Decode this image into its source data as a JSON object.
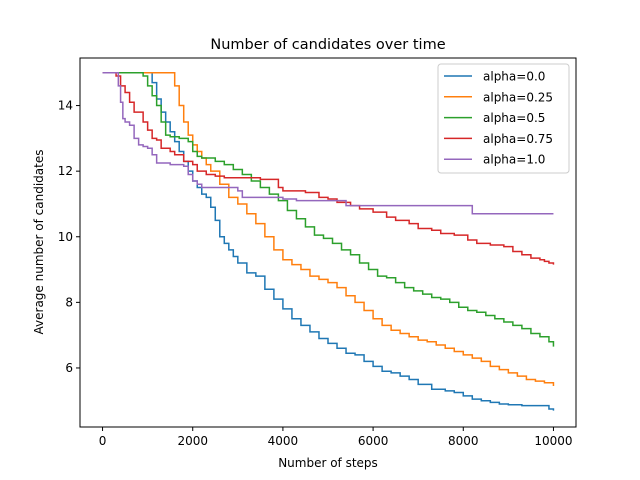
{
  "chart_data": {
    "type": "line",
    "title": "Number of candidates over time",
    "xlabel": "Number of steps",
    "ylabel": "Average number of candidates",
    "xlim": [
      -500,
      10500
    ],
    "ylim": [
      4.2,
      15.45
    ],
    "x_ticks": [
      0,
      2000,
      4000,
      6000,
      8000,
      10000
    ],
    "x_tick_labels": [
      "0",
      "2000",
      "4000",
      "6000",
      "8000",
      "10000"
    ],
    "y_ticks": [
      6,
      8,
      10,
      12,
      14
    ],
    "y_tick_labels": [
      "6",
      "8",
      "10",
      "12",
      "14"
    ],
    "grid": false,
    "legend_position": "top-right",
    "series": [
      {
        "name": "alpha=0.0",
        "color": "#1f77b4",
        "x": [
          0,
          1000,
          1100,
          1200,
          1300,
          1400,
          1500,
          1600,
          1700,
          1800,
          1900,
          2000,
          2100,
          2200,
          2300,
          2400,
          2500,
          2600,
          2700,
          2800,
          2900,
          3000,
          3200,
          3400,
          3600,
          3800,
          4000,
          4200,
          4400,
          4600,
          4800,
          5000,
          5200,
          5400,
          5600,
          5800,
          6000,
          6200,
          6400,
          6600,
          6800,
          7000,
          7300,
          7600,
          7800,
          8000,
          8200,
          8400,
          8600,
          8800,
          9000,
          9300,
          9600,
          9900,
          10000
        ],
        "y": [
          15.0,
          15.0,
          14.7,
          14.2,
          13.8,
          13.5,
          13.2,
          12.9,
          12.6,
          12.3,
          12.0,
          11.7,
          11.5,
          11.3,
          11.2,
          10.9,
          10.5,
          10.0,
          9.8,
          9.6,
          9.4,
          9.2,
          8.9,
          8.8,
          8.4,
          8.1,
          7.8,
          7.5,
          7.3,
          7.1,
          6.9,
          6.75,
          6.6,
          6.45,
          6.4,
          6.2,
          6.05,
          5.9,
          5.85,
          5.75,
          5.65,
          5.5,
          5.35,
          5.3,
          5.25,
          5.15,
          5.05,
          5.0,
          4.95,
          4.9,
          4.88,
          4.85,
          4.85,
          4.75,
          4.7
        ]
      },
      {
        "name": "alpha=0.25",
        "color": "#ff7f0e",
        "x": [
          0,
          1500,
          1600,
          1700,
          1800,
          1900,
          2000,
          2100,
          2200,
          2300,
          2400,
          2600,
          2800,
          3000,
          3200,
          3400,
          3600,
          3800,
          4000,
          4200,
          4400,
          4600,
          4800,
          5000,
          5200,
          5400,
          5600,
          5800,
          6000,
          6200,
          6400,
          6600,
          6800,
          7000,
          7200,
          7400,
          7600,
          7800,
          8000,
          8200,
          8400,
          8600,
          8800,
          9000,
          9200,
          9400,
          9600,
          9800,
          10000
        ],
        "y": [
          15.0,
          15.0,
          14.6,
          14.0,
          13.5,
          13.1,
          12.8,
          12.6,
          12.4,
          12.2,
          12.0,
          11.6,
          11.2,
          11.0,
          10.7,
          10.4,
          10.0,
          9.6,
          9.3,
          9.15,
          9.0,
          8.8,
          8.7,
          8.6,
          8.45,
          8.2,
          8.0,
          7.75,
          7.5,
          7.3,
          7.15,
          7.05,
          6.95,
          6.85,
          6.8,
          6.7,
          6.6,
          6.5,
          6.4,
          6.3,
          6.2,
          6.05,
          5.95,
          5.85,
          5.75,
          5.65,
          5.6,
          5.55,
          5.45
        ]
      },
      {
        "name": "alpha=0.5",
        "color": "#2ca02c",
        "x": [
          0,
          800,
          900,
          1000,
          1100,
          1200,
          1300,
          1400,
          1500,
          1700,
          1900,
          2000,
          2100,
          2200,
          2300,
          2500,
          2700,
          2900,
          3100,
          3300,
          3500,
          3700,
          3900,
          4100,
          4300,
          4500,
          4700,
          4900,
          5100,
          5300,
          5500,
          5700,
          5900,
          6100,
          6300,
          6500,
          6700,
          6900,
          7100,
          7300,
          7500,
          7700,
          7900,
          8100,
          8300,
          8500,
          8700,
          8900,
          9100,
          9300,
          9500,
          9700,
          9900,
          10000
        ],
        "y": [
          15.0,
          15.0,
          14.9,
          14.6,
          14.3,
          14.0,
          13.5,
          13.1,
          13.05,
          13.0,
          12.9,
          12.6,
          12.45,
          12.4,
          12.4,
          12.3,
          12.2,
          12.05,
          11.9,
          11.7,
          11.5,
          11.3,
          11.1,
          10.8,
          10.55,
          10.3,
          10.05,
          9.95,
          9.8,
          9.6,
          9.45,
          9.2,
          9.0,
          8.8,
          8.75,
          8.6,
          8.45,
          8.35,
          8.25,
          8.15,
          8.1,
          8.0,
          7.85,
          7.75,
          7.7,
          7.6,
          7.5,
          7.4,
          7.3,
          7.2,
          7.05,
          6.95,
          6.8,
          6.65
        ]
      },
      {
        "name": "alpha=0.75",
        "color": "#d62728",
        "x": [
          0,
          200,
          300,
          400,
          500,
          600,
          700,
          900,
          1000,
          1100,
          1200,
          1300,
          1500,
          1600,
          1800,
          2000,
          2100,
          2300,
          2500,
          2700,
          3000,
          3500,
          3900,
          4000,
          4500,
          4800,
          5000,
          5200,
          5500,
          5700,
          6000,
          6300,
          6500,
          6800,
          7000,
          7300,
          7500,
          7800,
          8100,
          8300,
          8600,
          8900,
          9100,
          9300,
          9500,
          9700,
          9800,
          9900,
          10000
        ],
        "y": [
          15.0,
          15.0,
          14.9,
          14.6,
          14.4,
          14.1,
          13.8,
          13.5,
          13.25,
          13.0,
          12.95,
          12.7,
          12.6,
          12.5,
          12.3,
          12.2,
          12.0,
          11.9,
          11.85,
          11.8,
          11.8,
          11.75,
          11.5,
          11.4,
          11.35,
          11.2,
          11.15,
          11.05,
          10.95,
          10.85,
          10.75,
          10.6,
          10.5,
          10.4,
          10.25,
          10.2,
          10.1,
          10.05,
          9.9,
          9.8,
          9.75,
          9.7,
          9.55,
          9.45,
          9.35,
          9.3,
          9.25,
          9.2,
          9.15
        ]
      },
      {
        "name": "alpha=1.0",
        "color": "#9467bd",
        "x": [
          0,
          300,
          350,
          400,
          450,
          500,
          600,
          700,
          800,
          900,
          1000,
          1100,
          1200,
          1500,
          1800,
          1900,
          2000,
          2100,
          2200,
          2600,
          2900,
          3000,
          3100,
          3900,
          4000,
          4300,
          5000,
          5400,
          5600,
          8100,
          8200,
          10000
        ],
        "y": [
          15.0,
          15.0,
          14.6,
          14.1,
          13.6,
          13.5,
          13.4,
          13.0,
          12.8,
          12.75,
          12.7,
          12.5,
          12.25,
          12.2,
          12.15,
          11.9,
          11.7,
          11.6,
          11.5,
          11.5,
          11.5,
          11.4,
          11.2,
          11.2,
          11.15,
          11.1,
          11.1,
          10.95,
          10.95,
          10.95,
          10.7,
          10.7
        ]
      }
    ]
  }
}
